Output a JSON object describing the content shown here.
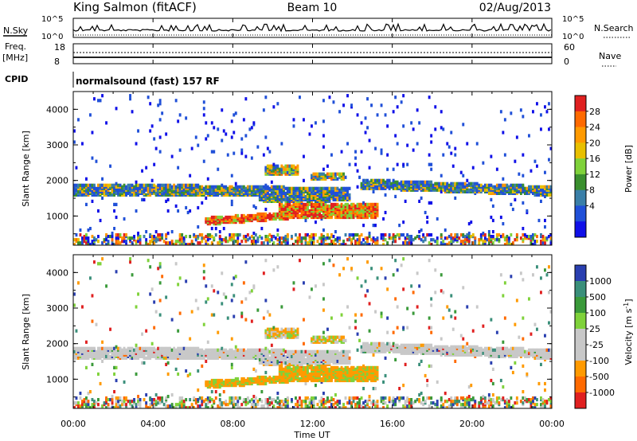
{
  "header": {
    "station": "King Salmon (fitACF)",
    "beam": "Beam 10",
    "date": "02/Aug/2013"
  },
  "summary": {
    "nsky_label": "N.Sky",
    "nsky_ticks": [
      "10^5",
      "10^0"
    ],
    "nsearch_label": "N.Search",
    "nsearch_ticks": [
      "10^5",
      "10^0"
    ],
    "freq_label": "Freq.",
    "freq_unit": "[MHz]",
    "freq_ticks": [
      "18",
      "8"
    ],
    "nave_label": "Nave",
    "nave_ticks": [
      "60",
      "0"
    ],
    "cpid_label": "CPID",
    "cpid_value": "normalsound (fast) 157 RF"
  },
  "chart_data": [
    {
      "type": "heatmap",
      "name": "power",
      "ylabel": "Slant Range [km]",
      "yticks": [
        "4000",
        "3000",
        "2000",
        "1000"
      ],
      "ytick_values": [
        4000,
        3000,
        2000,
        1000
      ],
      "ylim": [
        180,
        4500
      ],
      "xlim": [
        0,
        24
      ],
      "colorbar": {
        "label": "Power [dB]",
        "ticks": [
          "28",
          "24",
          "20",
          "16",
          "12",
          "8",
          "4"
        ],
        "colors": [
          "#e02020",
          "#ff6a00",
          "#ff9a00",
          "#e8c000",
          "#7fd23a",
          "#3a8f2e",
          "#3a7fa8",
          "#2050d8",
          "#1010e8"
        ]
      }
    },
    {
      "type": "heatmap",
      "name": "velocity",
      "ylabel": "Slant Range [km]",
      "yticks": [
        "4000",
        "3000",
        "2000",
        "1000"
      ],
      "ytick_values": [
        4000,
        3000,
        2000,
        1000
      ],
      "ylim": [
        180,
        4500
      ],
      "xlim": [
        0,
        24
      ],
      "xlabel": "Time UT",
      "xticks": [
        "00:00",
        "04:00",
        "08:00",
        "12:00",
        "16:00",
        "20:00",
        "00:00"
      ],
      "colorbar": {
        "label": "Velocity [m s^-1]",
        "ticks": [
          "1000",
          "500",
          "100",
          "25",
          "-25",
          "-100",
          "-500",
          "-1000"
        ],
        "colors": [
          "#2a3fb0",
          "#3a8f7a",
          "#3a9a3a",
          "#7fd23a",
          "#c8c8c8",
          "#c8c8c8",
          "#ff9a00",
          "#ff6a00",
          "#e02020"
        ]
      }
    }
  ]
}
